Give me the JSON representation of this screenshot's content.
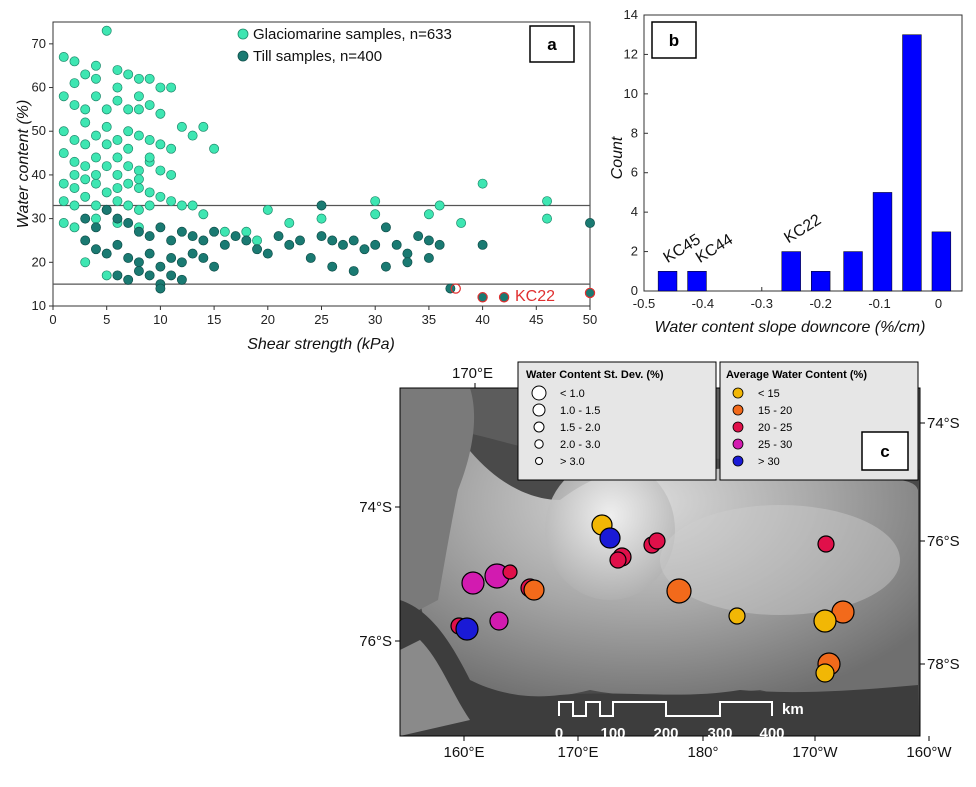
{
  "chart_data": [
    {
      "panel": "a",
      "type": "scatter",
      "xlabel": "Shear strength (kPa)",
      "ylabel": "Water content (%)",
      "xlim": [
        0,
        50
      ],
      "ylim": [
        10,
        75
      ],
      "xticks": [
        "0",
        "5",
        "10",
        "15",
        "20",
        "25",
        "30",
        "35",
        "40",
        "45",
        "50"
      ],
      "yticks": [
        "10",
        "20",
        "30",
        "40",
        "50",
        "60",
        "70"
      ],
      "hlines": [
        33,
        15
      ],
      "series": [
        {
          "name": "Glaciomarine samples, n=633",
          "color": "#3ee6b2",
          "points": [
            [
              1,
              67
            ],
            [
              2,
              66
            ],
            [
              3,
              63
            ],
            [
              4,
              65
            ],
            [
              5,
              73
            ],
            [
              6,
              64
            ],
            [
              7,
              63
            ],
            [
              8,
              62
            ],
            [
              9,
              62
            ],
            [
              10,
              60
            ],
            [
              11,
              60
            ],
            [
              1,
              58
            ],
            [
              2,
              56
            ],
            [
              3,
              55
            ],
            [
              4,
              58
            ],
            [
              5,
              55
            ],
            [
              6,
              57
            ],
            [
              7,
              55
            ],
            [
              8,
              55
            ],
            [
              9,
              56
            ],
            [
              10,
              54
            ],
            [
              12,
              51
            ],
            [
              14,
              51
            ],
            [
              1,
              50
            ],
            [
              2,
              48
            ],
            [
              3,
              47
            ],
            [
              4,
              49
            ],
            [
              5,
              47
            ],
            [
              6,
              48
            ],
            [
              7,
              50
            ],
            [
              8,
              49
            ],
            [
              9,
              48
            ],
            [
              10,
              47
            ],
            [
              13,
              49
            ],
            [
              15,
              46
            ],
            [
              1,
              45
            ],
            [
              2,
              43
            ],
            [
              3,
              42
            ],
            [
              4,
              44
            ],
            [
              5,
              42
            ],
            [
              6,
              44
            ],
            [
              7,
              42
            ],
            [
              8,
              41
            ],
            [
              9,
              43
            ],
            [
              10,
              41
            ],
            [
              11,
              40
            ],
            [
              1,
              38
            ],
            [
              2,
              37
            ],
            [
              3,
              39
            ],
            [
              4,
              38
            ],
            [
              5,
              36
            ],
            [
              6,
              37
            ],
            [
              7,
              38
            ],
            [
              8,
              37
            ],
            [
              9,
              36
            ],
            [
              10,
              35
            ],
            [
              11,
              34
            ],
            [
              12,
              33
            ],
            [
              13,
              33
            ],
            [
              14,
              31
            ],
            [
              1,
              34
            ],
            [
              2,
              33
            ],
            [
              3,
              35
            ],
            [
              4,
              33
            ],
            [
              5,
              32
            ],
            [
              6,
              34
            ],
            [
              7,
              33
            ],
            [
              8,
              32
            ],
            [
              9,
              33
            ],
            [
              1,
              29
            ],
            [
              2,
              28
            ],
            [
              4,
              30
            ],
            [
              6,
              29
            ],
            [
              8,
              28
            ],
            [
              16,
              27
            ],
            [
              18,
              27
            ],
            [
              19,
              25
            ],
            [
              20,
              32
            ],
            [
              22,
              29
            ],
            [
              25,
              30
            ],
            [
              30,
              34
            ],
            [
              30,
              31
            ],
            [
              35,
              31
            ],
            [
              36,
              33
            ],
            [
              38,
              29
            ],
            [
              40,
              38
            ],
            [
              46,
              34
            ],
            [
              46,
              30
            ],
            [
              3,
              20
            ],
            [
              5,
              17
            ],
            [
              2,
              61
            ],
            [
              4,
              62
            ],
            [
              6,
              60
            ],
            [
              8,
              58
            ],
            [
              3,
              52
            ],
            [
              5,
              51
            ],
            [
              7,
              46
            ],
            [
              9,
              44
            ],
            [
              11,
              46
            ],
            [
              2,
              40
            ],
            [
              4,
              40
            ],
            [
              6,
              40
            ],
            [
              8,
              39
            ]
          ]
        },
        {
          "name": "Till samples, n=400",
          "color": "#1a7a72",
          "points": [
            [
              3,
              30
            ],
            [
              4,
              28
            ],
            [
              5,
              32
            ],
            [
              6,
              30
            ],
            [
              7,
              29
            ],
            [
              8,
              27
            ],
            [
              9,
              26
            ],
            [
              10,
              28
            ],
            [
              11,
              25
            ],
            [
              12,
              27
            ],
            [
              13,
              26
            ],
            [
              14,
              25
            ],
            [
              15,
              27
            ],
            [
              16,
              24
            ],
            [
              17,
              26
            ],
            [
              18,
              25
            ],
            [
              3,
              25
            ],
            [
              4,
              23
            ],
            [
              5,
              22
            ],
            [
              6,
              24
            ],
            [
              7,
              21
            ],
            [
              8,
              20
            ],
            [
              9,
              22
            ],
            [
              10,
              19
            ],
            [
              11,
              21
            ],
            [
              12,
              20
            ],
            [
              13,
              22
            ],
            [
              14,
              21
            ],
            [
              15,
              19
            ],
            [
              6,
              17
            ],
            [
              7,
              16
            ],
            [
              8,
              18
            ],
            [
              9,
              17
            ],
            [
              10,
              15
            ],
            [
              10,
              14
            ],
            [
              11,
              17
            ],
            [
              12,
              16
            ],
            [
              19,
              23
            ],
            [
              20,
              22
            ],
            [
              21,
              26
            ],
            [
              22,
              24
            ],
            [
              23,
              25
            ],
            [
              25,
              26
            ],
            [
              25,
              33
            ],
            [
              26,
              25
            ],
            [
              27,
              24
            ],
            [
              28,
              25
            ],
            [
              29,
              23
            ],
            [
              30,
              24
            ],
            [
              31,
              28
            ],
            [
              32,
              24
            ],
            [
              33,
              22
            ],
            [
              34,
              26
            ],
            [
              35,
              25
            ],
            [
              36,
              24
            ],
            [
              35,
              21
            ],
            [
              37,
              14
            ],
            [
              40,
              24
            ],
            [
              40,
              12
            ],
            [
              42,
              12
            ],
            [
              50,
              29
            ],
            [
              50,
              13
            ],
            [
              24,
              21
            ],
            [
              26,
              19
            ],
            [
              28,
              18
            ],
            [
              31,
              19
            ],
            [
              33,
              20
            ]
          ]
        }
      ],
      "highlight_label": {
        "text": "KC22",
        "color": "#e03030",
        "x": 44,
        "y": 12.5
      }
    },
    {
      "panel": "b",
      "type": "bar",
      "xlabel": "Water content slope downcore (%/cm)",
      "ylabel": "Count",
      "xlim": [
        -0.5,
        0.04
      ],
      "ylim": [
        0,
        14
      ],
      "xticks": [
        "-0.5",
        "-0.4",
        "-0.3",
        "-0.2",
        "-0.1",
        "0"
      ],
      "yticks": [
        "0",
        "2",
        "4",
        "6",
        "8",
        "10",
        "12",
        "14"
      ],
      "bar_width": 0.032,
      "bar_color": "#0000ff",
      "bars": [
        [
          -0.46,
          1
        ],
        [
          -0.41,
          1
        ],
        [
          -0.25,
          2
        ],
        [
          -0.2,
          1
        ],
        [
          -0.145,
          2
        ],
        [
          -0.095,
          5
        ],
        [
          -0.045,
          13
        ],
        [
          0.005,
          3
        ]
      ],
      "annotations": [
        {
          "text": "KC45",
          "x": -0.46,
          "y": 1.4
        },
        {
          "text": "KC44",
          "x": -0.405,
          "y": 1.4
        },
        {
          "text": "KC22",
          "x": -0.255,
          "y": 2.4
        }
      ]
    }
  ],
  "map": {
    "panel_label": "c",
    "top_lon_label": "170°E",
    "left_lat_labels": [
      "74°S",
      "76°S"
    ],
    "right_lat_labels": [
      "74°S",
      "76°S",
      "78°S"
    ],
    "bottom_lon_labels": [
      "160°E",
      "170°E",
      "180°",
      "170°W",
      "160°W"
    ],
    "scale_labels": [
      "0",
      "100",
      "200",
      "300",
      "400"
    ],
    "scale_unit": "km",
    "legend_sd": {
      "title": "Water Content St. Dev. (%)",
      "items": [
        "< 1.0",
        "1.0 - 1.5",
        "1.5 - 2.0",
        "2.0 - 3.0",
        "> 3.0"
      ]
    },
    "legend_wc": {
      "title": "Average Water Content (%)",
      "items": [
        {
          "label": "< 15",
          "color": "#f2b705"
        },
        {
          "label": "15 - 20",
          "color": "#f26a1b"
        },
        {
          "label": "20 - 25",
          "color": "#e0104a"
        },
        {
          "label": "25 - 30",
          "color": "#d21bb0"
        },
        {
          "label": "> 30",
          "color": "#1a1ad6"
        }
      ]
    }
  }
}
